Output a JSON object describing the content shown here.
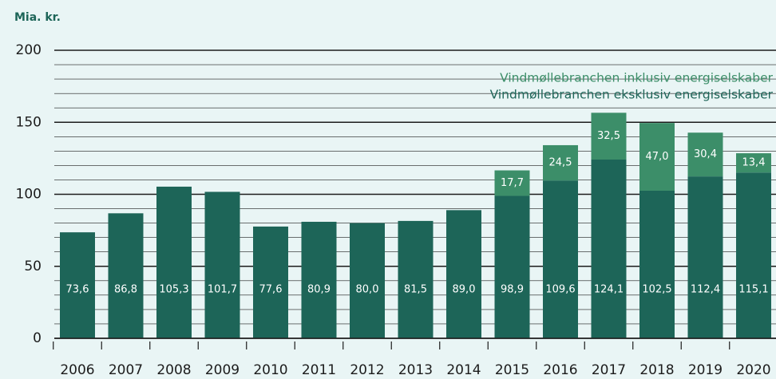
{
  "chart_data": {
    "type": "stacked_bar",
    "y_label": "Mia. kr.",
    "categories": [
      "2006",
      "2007",
      "2008",
      "2009",
      "2010",
      "2011",
      "2012",
      "2013",
      "2014",
      "2015",
      "2016",
      "2017",
      "2018",
      "2019",
      "2020"
    ],
    "series": [
      {
        "name": "Vindmøllebranchen eksklusiv energiselskaber",
        "color": "#1d6558",
        "values": [
          73.6,
          86.8,
          105.3,
          101.7,
          77.6,
          80.9,
          80.0,
          81.5,
          89.0,
          98.9,
          109.6,
          124.1,
          102.5,
          112.4,
          115.1
        ],
        "value_labels": [
          "73,6",
          "86,8",
          "105,3",
          "101,7",
          "77,6",
          "80,9",
          "80,0",
          "81,5",
          "89,0",
          "98,9",
          "109,6",
          "124,1",
          "102,5",
          "112,4",
          "115,1"
        ]
      },
      {
        "name": "Vindmøllebranchen inklusiv energiselskaber",
        "color": "#3c8e69",
        "values": [
          null,
          null,
          null,
          null,
          null,
          null,
          null,
          null,
          null,
          17.7,
          24.5,
          32.5,
          47.0,
          30.4,
          13.4
        ],
        "value_labels": [
          null,
          null,
          null,
          null,
          null,
          null,
          null,
          null,
          null,
          "17,7",
          "24,5",
          "32,5",
          "47,0",
          "30,4",
          "13,4"
        ]
      }
    ],
    "ylim": [
      0,
      200
    ],
    "yticks": [
      0,
      50,
      100,
      150,
      200
    ],
    "minor_yticks": [
      10,
      20,
      30,
      40,
      60,
      70,
      80,
      90,
      110,
      120,
      130,
      140,
      160,
      170,
      180,
      190
    ],
    "grid": true,
    "legend": "upper right"
  }
}
